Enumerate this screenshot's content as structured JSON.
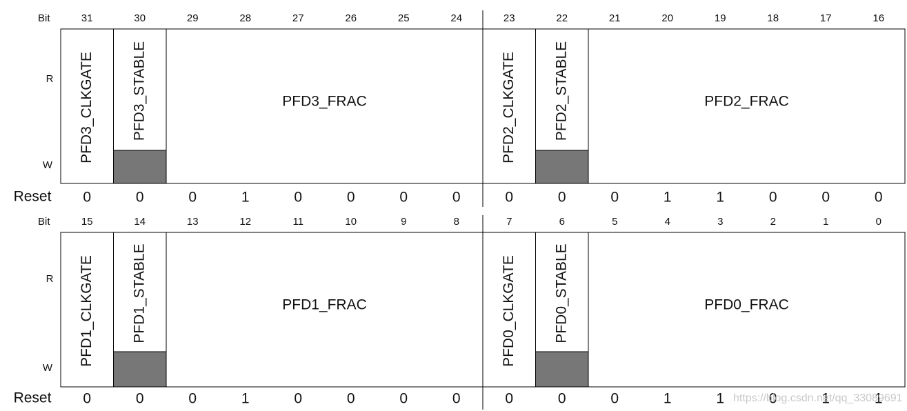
{
  "rows": [
    {
      "bit_label": "Bit",
      "bits": [
        31,
        30,
        29,
        28,
        27,
        26,
        25,
        24,
        23,
        22,
        21,
        20,
        19,
        18,
        17,
        16
      ],
      "r_label": "R",
      "w_label": "W",
      "fields": [
        "PFD3_CLKGATE",
        "PFD3_STABLE",
        "PFD3_FRAC",
        "PFD2_CLKGATE",
        "PFD2_STABLE",
        "PFD2_FRAC"
      ],
      "reset_label": "Reset",
      "reset": [
        0,
        0,
        0,
        1,
        0,
        0,
        0,
        0,
        0,
        0,
        0,
        1,
        1,
        0,
        0,
        0
      ]
    },
    {
      "bit_label": "Bit",
      "bits": [
        15,
        14,
        13,
        12,
        11,
        10,
        9,
        8,
        7,
        6,
        5,
        4,
        3,
        2,
        1,
        0
      ],
      "r_label": "R",
      "w_label": "W",
      "fields": [
        "PFD1_CLKGATE",
        "PFD1_STABLE",
        "PFD1_FRAC",
        "PFD0_CLKGATE",
        "PFD0_STABLE",
        "PFD0_FRAC"
      ],
      "reset_label": "Reset",
      "reset": [
        0,
        0,
        0,
        1,
        0,
        0,
        0,
        0,
        0,
        0,
        0,
        1,
        1,
        0,
        1,
        1
      ]
    }
  ],
  "watermark": "https://blog.csdn.net/qq_33089691"
}
